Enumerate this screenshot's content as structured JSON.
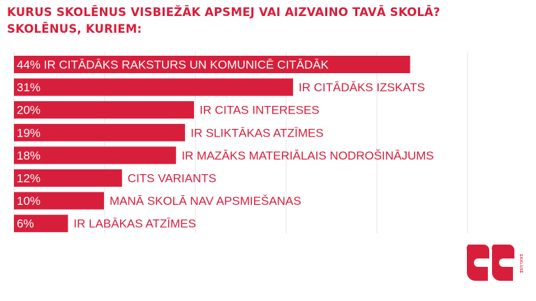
{
  "title_lines": [
    "KURUS SKOLĒNUS VISBIEŽĀK APSMEJ VAI AIZVAINO TAVĀ SKOLĀ?",
    "SKOLĒNUS, KURIEM:"
  ],
  "colors": {
    "accent": "#d71f3c",
    "grid": "#e6e6e6"
  },
  "logo": {
    "icon": "ee-quote-logo",
    "text": "EKKLUSĒ"
  },
  "chart_data": {
    "type": "bar",
    "orientation": "horizontal",
    "title": "KURUS SKOLĒNUS VISBIEŽĀK APSMEJ VAI AIZVAINO TAVĀ SKOLĀ? SKOLĒNUS, KURIEM:",
    "categories": [
      "IR CITĀDĀKS RAKSTURS UN KOMUNICĒ CITĀDĀK",
      "IR CITĀDĀKS IZSKATS",
      "IR CITAS INTERESES",
      "IR SLIKTĀKAS ATZĪMES",
      "IR MAZĀKS MATERIĀLAIS NODROŠINĀJUMS",
      "CITS VARIANTS",
      "MANĀ SKOLĀ NAV APSMIEŠANAS",
      "IR LABĀKAS ATZĪMES"
    ],
    "values": [
      44,
      31,
      20,
      19,
      18,
      12,
      10,
      6
    ],
    "value_labels": [
      "44%",
      "31%",
      "20%",
      "19%",
      "18%",
      "12%",
      "10%",
      "6%"
    ],
    "unit": "%",
    "xlim": [
      0,
      60
    ],
    "grid": true,
    "legend": "none"
  }
}
